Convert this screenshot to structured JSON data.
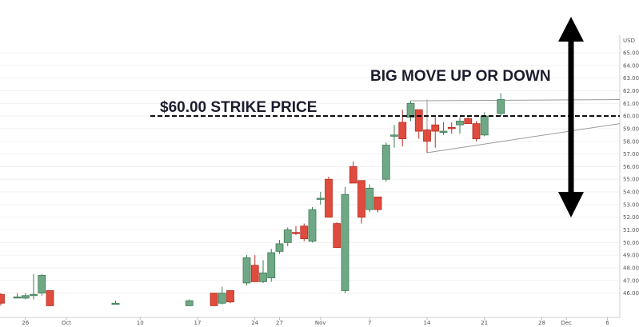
{
  "chart_data": {
    "type": "candlestick",
    "currency": "USD",
    "ylim": [
      45.0,
      67.0
    ],
    "y_ticks": [
      "46.00",
      "47.00",
      "48.00",
      "49.00",
      "50.00",
      "51.00",
      "52.00",
      "53.00",
      "54.00",
      "55.00",
      "56.00",
      "57.00",
      "58.00",
      "59.00",
      "60.00",
      "61.00",
      "62.00",
      "63.00",
      "64.00",
      "65.00"
    ],
    "x_ticks": [
      {
        "label": "26",
        "day": -5
      },
      {
        "label": "Oct",
        "day": 0
      },
      {
        "label": "10",
        "day": 9
      },
      {
        "label": "17",
        "day": 16
      },
      {
        "label": "24",
        "day": 23
      },
      {
        "label": "27",
        "day": 26
      },
      {
        "label": "Nov",
        "day": 31
      },
      {
        "label": "7",
        "day": 37
      },
      {
        "label": "14",
        "day": 44
      },
      {
        "label": "21",
        "day": 51
      },
      {
        "label": "28",
        "day": 58
      },
      {
        "label": "Dec",
        "day": 61
      },
      {
        "label": "6",
        "day": 66
      }
    ],
    "candles": [
      {
        "day": -8,
        "o": 45.9,
        "h": 46.0,
        "l": 45.0,
        "c": 45.2
      },
      {
        "day": -6,
        "o": 45.7,
        "h": 46.0,
        "l": 45.6,
        "c": 45.7
      },
      {
        "day": -5,
        "o": 45.6,
        "h": 46.0,
        "l": 45.5,
        "c": 45.8
      },
      {
        "day": -4,
        "o": 45.8,
        "h": 47.5,
        "l": 45.5,
        "c": 45.9
      },
      {
        "day": -3,
        "o": 46.0,
        "h": 47.5,
        "l": 45.8,
        "c": 47.4
      },
      {
        "day": -2,
        "o": 46.2,
        "h": 46.2,
        "l": 45.0,
        "c": 45.0
      },
      {
        "day": 6,
        "o": 45.2,
        "h": 45.4,
        "l": 45.1,
        "c": 45.2
      },
      {
        "day": 15,
        "o": 45.0,
        "h": 45.5,
        "l": 45.0,
        "c": 45.4
      },
      {
        "day": 18,
        "o": 46.0,
        "h": 46.0,
        "l": 45.0,
        "c": 45.0
      },
      {
        "day": 19,
        "o": 45.2,
        "h": 46.5,
        "l": 45.1,
        "c": 46.0
      },
      {
        "day": 20,
        "o": 46.2,
        "h": 46.2,
        "l": 45.2,
        "c": 45.3
      },
      {
        "day": 22,
        "o": 46.8,
        "h": 49.0,
        "l": 46.6,
        "c": 48.8
      },
      {
        "day": 23,
        "o": 48.2,
        "h": 49.0,
        "l": 46.9,
        "c": 46.9
      },
      {
        "day": 24,
        "o": 46.9,
        "h": 48.6,
        "l": 46.8,
        "c": 47.6
      },
      {
        "day": 25,
        "o": 47.2,
        "h": 49.5,
        "l": 46.9,
        "c": 49.2
      },
      {
        "day": 26,
        "o": 49.3,
        "h": 50.2,
        "l": 49.1,
        "c": 49.9
      },
      {
        "day": 27,
        "o": 50.0,
        "h": 51.2,
        "l": 49.7,
        "c": 51.0
      },
      {
        "day": 28,
        "o": 50.8,
        "h": 51.3,
        "l": 50.6,
        "c": 50.7
      },
      {
        "day": 29,
        "o": 51.3,
        "h": 51.5,
        "l": 50.1,
        "c": 50.3
      },
      {
        "day": 30,
        "o": 50.1,
        "h": 52.8,
        "l": 50.0,
        "c": 52.6
      },
      {
        "day": 31,
        "o": 53.5,
        "h": 54.0,
        "l": 53.0,
        "c": 53.5
      },
      {
        "day": 32,
        "o": 55.0,
        "h": 55.2,
        "l": 52.0,
        "c": 52.0
      },
      {
        "day": 33,
        "o": 51.5,
        "h": 51.6,
        "l": 49.6,
        "c": 49.6
      },
      {
        "day": 34,
        "o": 46.2,
        "h": 54.4,
        "l": 46.0,
        "c": 53.8
      },
      {
        "day": 35,
        "o": 56.0,
        "h": 56.4,
        "l": 54.7,
        "c": 54.7
      },
      {
        "day": 36,
        "o": 54.9,
        "h": 54.9,
        "l": 51.5,
        "c": 52.0
      },
      {
        "day": 37,
        "o": 52.6,
        "h": 54.6,
        "l": 52.4,
        "c": 54.3
      },
      {
        "day": 38,
        "o": 53.6,
        "h": 53.6,
        "l": 52.4,
        "c": 52.6
      },
      {
        "day": 39,
        "o": 55.0,
        "h": 57.9,
        "l": 54.8,
        "c": 57.7
      },
      {
        "day": 40,
        "o": 58.4,
        "h": 59.3,
        "l": 57.5,
        "c": 58.5
      },
      {
        "day": 41,
        "o": 59.5,
        "h": 60.5,
        "l": 57.6,
        "c": 58.2
      },
      {
        "day": 42,
        "o": 59.9,
        "h": 61.2,
        "l": 59.6,
        "c": 61.0
      },
      {
        "day": 43,
        "o": 60.5,
        "h": 60.5,
        "l": 58.2,
        "c": 58.8
      },
      {
        "day": 44,
        "o": 58.9,
        "h": 59.0,
        "l": 57.1,
        "c": 58.0
      },
      {
        "day": 45,
        "o": 59.3,
        "h": 59.9,
        "l": 57.5,
        "c": 58.8
      },
      {
        "day": 46,
        "o": 58.7,
        "h": 59.5,
        "l": 58.5,
        "c": 58.8
      },
      {
        "day": 47,
        "o": 59.1,
        "h": 59.5,
        "l": 58.6,
        "c": 59.0
      },
      {
        "day": 48,
        "o": 59.3,
        "h": 59.9,
        "l": 58.6,
        "c": 59.6
      },
      {
        "day": 49,
        "o": 59.8,
        "h": 59.9,
        "l": 59.4,
        "c": 59.4
      },
      {
        "day": 50,
        "o": 59.4,
        "h": 59.6,
        "l": 58.0,
        "c": 58.2
      },
      {
        "day": 51,
        "o": 58.5,
        "h": 60.3,
        "l": 58.4,
        "c": 60.0
      },
      {
        "day": 53,
        "o": 60.2,
        "h": 61.8,
        "l": 60.0,
        "c": 61.3
      }
    ]
  },
  "annotations": {
    "title": "BIG MOVE UP OR DOWN",
    "strike_label": "$60.00 STRIKE PRICE",
    "strike_price": 60.0
  },
  "colors": {
    "up": "#6fa884",
    "up_border": "#3f7a57",
    "down": "#df4b3c",
    "down_border": "#b53025",
    "triangle": "#9a9a9a",
    "arrow": "#000000",
    "text": "#1c1c2e"
  },
  "icons": [
    "up-arrow-icon",
    "down-arrow-icon"
  ]
}
